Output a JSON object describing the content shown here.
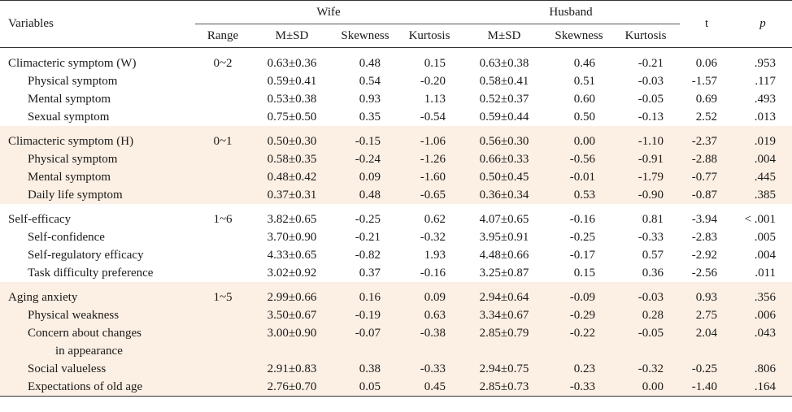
{
  "header": {
    "variables": "Variables",
    "wife": "Wife",
    "husband": "Husband",
    "t": "t",
    "p": "p",
    "range": "Range",
    "msd": "M±SD",
    "skewness": "Skewness",
    "kurtosis": "Kurtosis"
  },
  "groups": [
    {
      "rows": [
        {
          "label": "Climacteric symptom (W)",
          "range": "0~2",
          "w_msd": "0.63±0.36",
          "w_skew": "0.48",
          "w_kurt": "0.15",
          "h_msd": "0.63±0.38",
          "h_skew": "0.46",
          "h_kurt": "-0.21",
          "t": "0.06",
          "p": ".953"
        },
        {
          "label": "Physical symptom",
          "range": "",
          "w_msd": "0.59±0.41",
          "w_skew": "0.54",
          "w_kurt": "-0.20",
          "h_msd": "0.58±0.41",
          "h_skew": "0.51",
          "h_kurt": "-0.03",
          "t": "-1.57",
          "p": ".117"
        },
        {
          "label": "Mental symptom",
          "range": "",
          "w_msd": "0.53±0.38",
          "w_skew": "0.93",
          "w_kurt": "1.13",
          "h_msd": "0.52±0.37",
          "h_skew": "0.60",
          "h_kurt": "-0.05",
          "t": "0.69",
          "p": ".493"
        },
        {
          "label": "Sexual symptom",
          "range": "",
          "w_msd": "0.75±0.50",
          "w_skew": "0.35",
          "w_kurt": "-0.54",
          "h_msd": "0.59±0.44",
          "h_skew": "0.50",
          "h_kurt": "-0.13",
          "t": "2.52",
          "p": ".013"
        }
      ]
    },
    {
      "rows": [
        {
          "label": "Climacteric symptom (H)",
          "range": "0~1",
          "w_msd": "0.50±0.30",
          "w_skew": "-0.15",
          "w_kurt": "-1.06",
          "h_msd": "0.56±0.30",
          "h_skew": "0.00",
          "h_kurt": "-1.10",
          "t": "-2.37",
          "p": ".019"
        },
        {
          "label": "Physical symptom",
          "range": "",
          "w_msd": "0.58±0.35",
          "w_skew": "-0.24",
          "w_kurt": "-1.26",
          "h_msd": "0.66±0.33",
          "h_skew": "-0.56",
          "h_kurt": "-0.91",
          "t": "-2.88",
          "p": ".004"
        },
        {
          "label": "Mental symptom",
          "range": "",
          "w_msd": "0.48±0.42",
          "w_skew": "0.09",
          "w_kurt": "-1.60",
          "h_msd": "0.50±0.45",
          "h_skew": "-0.01",
          "h_kurt": "-1.79",
          "t": "-0.77",
          "p": ".445"
        },
        {
          "label": "Daily life symptom",
          "range": "",
          "w_msd": "0.37±0.31",
          "w_skew": "0.48",
          "w_kurt": "-0.65",
          "h_msd": "0.36±0.34",
          "h_skew": "0.53",
          "h_kurt": "-0.90",
          "t": "-0.87",
          "p": ".385"
        }
      ]
    },
    {
      "rows": [
        {
          "label": "Self-efficacy",
          "range": "1~6",
          "w_msd": "3.82±0.65",
          "w_skew": "-0.25",
          "w_kurt": "0.62",
          "h_msd": "4.07±0.65",
          "h_skew": "-0.16",
          "h_kurt": "0.81",
          "t": "-3.94",
          "p": "< .001"
        },
        {
          "label": "Self-confidence",
          "range": "",
          "w_msd": "3.70±0.90",
          "w_skew": "-0.21",
          "w_kurt": "-0.32",
          "h_msd": "3.95±0.91",
          "h_skew": "-0.25",
          "h_kurt": "-0.33",
          "t": "-2.83",
          "p": ".005"
        },
        {
          "label": "Self-regulatory efficacy",
          "range": "",
          "w_msd": "4.33±0.65",
          "w_skew": "-0.82",
          "w_kurt": "1.93",
          "h_msd": "4.48±0.66",
          "h_skew": "-0.17",
          "h_kurt": "0.57",
          "t": "-2.92",
          "p": ".004"
        },
        {
          "label": "Task difficulty preference",
          "range": "",
          "w_msd": "3.02±0.92",
          "w_skew": "0.37",
          "w_kurt": "-0.16",
          "h_msd": "3.25±0.87",
          "h_skew": "0.15",
          "h_kurt": "0.36",
          "t": "-2.56",
          "p": ".011"
        }
      ]
    },
    {
      "rows": [
        {
          "label": "Aging anxiety",
          "range": "1~5",
          "w_msd": "2.99±0.66",
          "w_skew": "0.16",
          "w_kurt": "0.09",
          "h_msd": "2.94±0.64",
          "h_skew": "-0.09",
          "h_kurt": "-0.03",
          "t": "0.93",
          "p": ".356"
        },
        {
          "label": "Physical weakness",
          "range": "",
          "w_msd": "3.50±0.67",
          "w_skew": "-0.19",
          "w_kurt": "0.63",
          "h_msd": "3.34±0.67",
          "h_skew": "-0.29",
          "h_kurt": "0.28",
          "t": "2.75",
          "p": ".006"
        },
        {
          "label": "Concern about changes",
          "label2": "in appearance",
          "range": "",
          "w_msd": "3.00±0.90",
          "w_skew": "-0.07",
          "w_kurt": "-0.38",
          "h_msd": "2.85±0.79",
          "h_skew": "-0.22",
          "h_kurt": "-0.05",
          "t": "2.04",
          "p": ".043"
        },
        {
          "label": "Social valueless",
          "range": "",
          "w_msd": "2.91±0.83",
          "w_skew": "0.38",
          "w_kurt": "-0.33",
          "h_msd": "2.94±0.75",
          "h_skew": "0.23",
          "h_kurt": "-0.32",
          "t": "-0.25",
          "p": ".806"
        },
        {
          "label": "Expectations of old age",
          "range": "",
          "w_msd": "2.76±0.70",
          "w_skew": "0.05",
          "w_kurt": "0.45",
          "h_msd": "2.85±0.73",
          "h_skew": "-0.33",
          "h_kurt": "0.00",
          "t": "-1.40",
          "p": ".164"
        }
      ]
    }
  ]
}
